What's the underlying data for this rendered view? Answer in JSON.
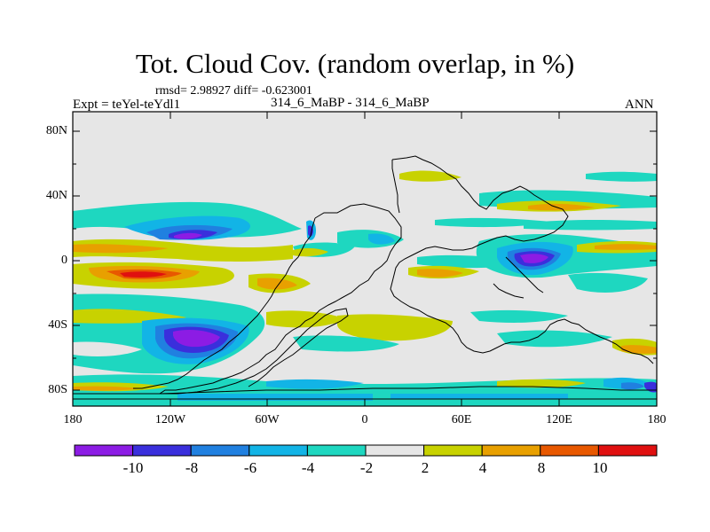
{
  "title": "Tot. Cloud Cov. (random overlap, in %)",
  "stats": "rmsd= 2.98927 diff= -0.623001",
  "experiment": "Expt = teYel-teYdl1",
  "case": "314_6_MaBP - 314_6_MaBP",
  "season": "ANN",
  "x_axis": {
    "ticks": [
      "180",
      "120W",
      "60W",
      "0",
      "60E",
      "120E",
      "180"
    ]
  },
  "y_axis": {
    "ticks": [
      "80N",
      "40N",
      "0",
      "40S",
      "80S"
    ]
  },
  "colorbar": {
    "labels": [
      "-10",
      "-8",
      "-6",
      "-4",
      "-2",
      "2",
      "4",
      "8",
      "10"
    ],
    "colors": [
      "#8c1ce4",
      "#3a2fdc",
      "#2080e0",
      "#12b4e6",
      "#1ed7c0",
      "#e6e6e6",
      "#c8d200",
      "#e8a000",
      "#e85800",
      "#e01010"
    ]
  },
  "colors": {
    "background": "#e6e6e6",
    "coastline": "#000000"
  }
}
